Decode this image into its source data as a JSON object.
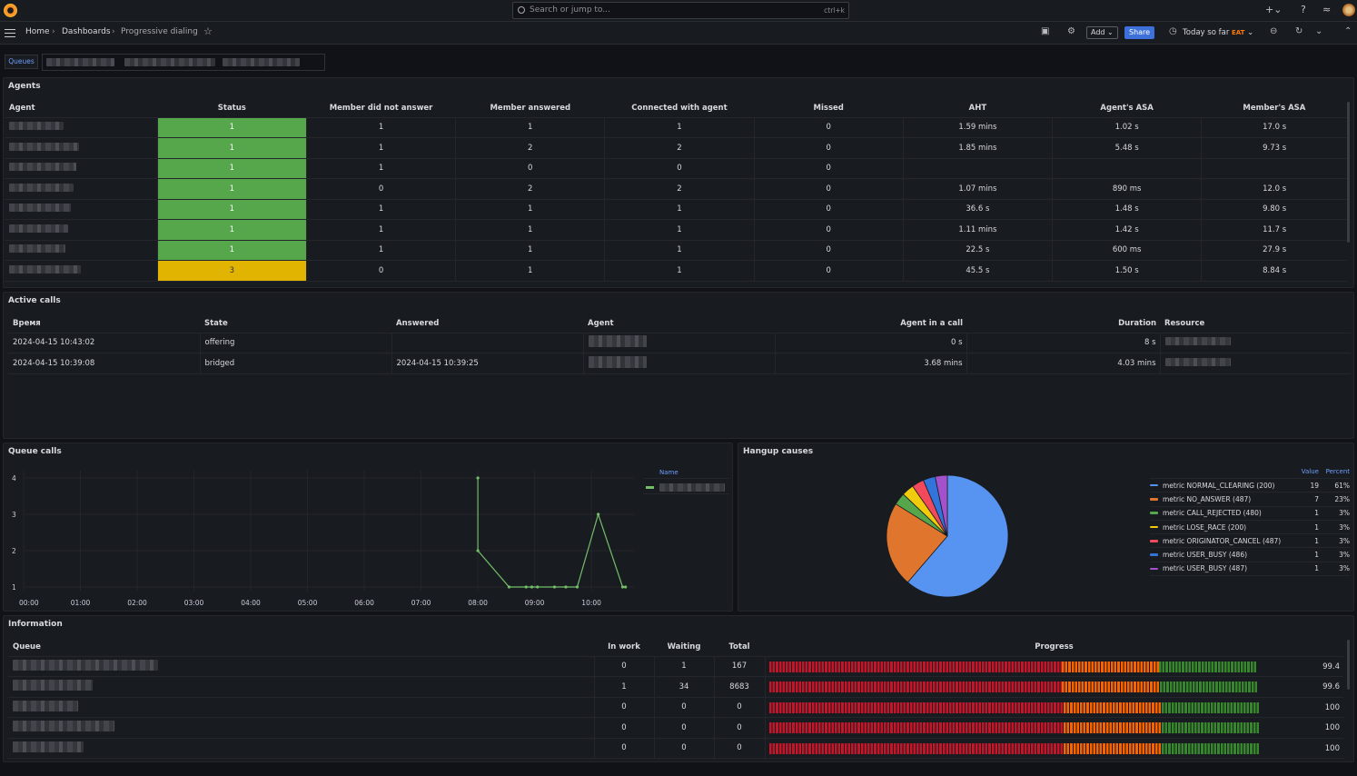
{
  "topbar": {
    "search_placeholder": "Search or jump to...",
    "search_shortcut": "ctrl+k"
  },
  "breadcrumb": [
    "Home",
    "Dashboards",
    "Progressive dialing"
  ],
  "toolbar": {
    "add_label": "Add",
    "share_label": "Share",
    "time_label": "Today so far",
    "timezone": "EAT"
  },
  "variables": {
    "queues_label": "Queues"
  },
  "agents": {
    "title": "Agents",
    "columns": [
      "Agent",
      "Status",
      "Member did not answer",
      "Member answered",
      "Connected with agent",
      "Missed",
      "AHT",
      "Agent's ASA",
      "Member's ASA"
    ],
    "rows": [
      {
        "status": "1",
        "status_color": "green",
        "no_answer": "1",
        "answered": "1",
        "connected": "1",
        "missed": "0",
        "aht": "1.59 mins",
        "agent_asa": "1.02 s",
        "member_asa": "17.0 s"
      },
      {
        "status": "1",
        "status_color": "green",
        "no_answer": "1",
        "answered": "2",
        "connected": "2",
        "missed": "0",
        "aht": "1.85 mins",
        "agent_asa": "5.48 s",
        "member_asa": "9.73 s"
      },
      {
        "status": "1",
        "status_color": "green",
        "no_answer": "1",
        "answered": "0",
        "connected": "0",
        "missed": "0",
        "aht": "",
        "agent_asa": "",
        "member_asa": ""
      },
      {
        "status": "1",
        "status_color": "green",
        "no_answer": "0",
        "answered": "2",
        "connected": "2",
        "missed": "0",
        "aht": "1.07 mins",
        "agent_asa": "890 ms",
        "member_asa": "12.0 s"
      },
      {
        "status": "1",
        "status_color": "green",
        "no_answer": "1",
        "answered": "1",
        "connected": "1",
        "missed": "0",
        "aht": "36.6 s",
        "agent_asa": "1.48 s",
        "member_asa": "9.80 s"
      },
      {
        "status": "1",
        "status_color": "green",
        "no_answer": "1",
        "answered": "1",
        "connected": "1",
        "missed": "0",
        "aht": "1.11 mins",
        "agent_asa": "1.42 s",
        "member_asa": "11.7 s"
      },
      {
        "status": "1",
        "status_color": "green",
        "no_answer": "1",
        "answered": "1",
        "connected": "1",
        "missed": "0",
        "aht": "22.5 s",
        "agent_asa": "600 ms",
        "member_asa": "27.9 s"
      },
      {
        "status": "3",
        "status_color": "yellow",
        "no_answer": "0",
        "answered": "1",
        "connected": "1",
        "missed": "0",
        "aht": "45.5 s",
        "agent_asa": "1.50 s",
        "member_asa": "8.84 s"
      }
    ]
  },
  "active_calls": {
    "title": "Active calls",
    "columns": [
      "Время",
      "State",
      "Answered",
      "Agent",
      "Agent in a call",
      "Duration",
      "Resource"
    ],
    "rows": [
      {
        "time": "2024-04-15 10:43:02",
        "state": "offering",
        "answered": "",
        "agent_in_call": "0 s",
        "duration": "8 s"
      },
      {
        "time": "2024-04-15 10:39:08",
        "state": "bridged",
        "answered": "2024-04-15 10:39:25",
        "agent_in_call": "3.68 mins",
        "duration": "4.03 mins"
      }
    ]
  },
  "queue_calls": {
    "title": "Queue calls",
    "legend_header": "Name"
  },
  "chart_data": [
    {
      "type": "line",
      "title": "Queue calls",
      "x_ticks": [
        "00:00",
        "01:00",
        "02:00",
        "03:00",
        "04:00",
        "05:00",
        "06:00",
        "07:00",
        "08:00",
        "09:00",
        "10:00"
      ],
      "y_ticks": [
        "1",
        "2",
        "3",
        "4"
      ],
      "ylim": [
        0.9,
        4.2
      ],
      "xlim_hours": [
        0,
        10.75
      ],
      "series": [
        {
          "color": "#73bf69",
          "x_hours": [
            8.0,
            8.0,
            8.55,
            8.85,
            8.95,
            9.05,
            9.35,
            9.55,
            9.75,
            10.12,
            10.55,
            10.6
          ],
          "values": [
            4,
            2,
            1,
            1,
            1,
            1,
            1,
            1,
            1,
            3,
            1,
            1
          ]
        }
      ]
    },
    {
      "type": "pie",
      "title": "Hangup causes",
      "legend_headers": [
        "Value",
        "Percent"
      ],
      "slices": [
        {
          "label": "metric NORMAL_CLEARING (200)",
          "value": 19,
          "percent": "61%",
          "color": "#5794f2"
        },
        {
          "label": "metric NO_ANSWER (487)",
          "value": 7,
          "percent": "23%",
          "color": "#e0752d"
        },
        {
          "label": "metric CALL_REJECTED (480)",
          "value": 1,
          "percent": "3%",
          "color": "#56a64b"
        },
        {
          "label": "metric LOSE_RACE (200)",
          "value": 1,
          "percent": "3%",
          "color": "#f2cc0c"
        },
        {
          "label": "metric ORIGINATOR_CANCEL (487)",
          "value": 1,
          "percent": "3%",
          "color": "#f2495c"
        },
        {
          "label": "metric USER_BUSY (486)",
          "value": 1,
          "percent": "3%",
          "color": "#3274d9"
        },
        {
          "label": "metric USER_BUSY (487)",
          "value": 1,
          "percent": "3%",
          "color": "#a352cc"
        }
      ]
    }
  ],
  "information": {
    "title": "Information",
    "columns": [
      "Queue",
      "In work",
      "Waiting",
      "Total",
      "Progress"
    ],
    "rows": [
      {
        "in_work": "0",
        "waiting": "1",
        "total": "167",
        "progress": "99.4"
      },
      {
        "in_work": "1",
        "waiting": "34",
        "total": "8683",
        "progress": "99.6"
      },
      {
        "in_work": "0",
        "waiting": "0",
        "total": "0",
        "progress": "100"
      },
      {
        "in_work": "0",
        "waiting": "0",
        "total": "0",
        "progress": "100"
      },
      {
        "in_work": "0",
        "waiting": "0",
        "total": "0",
        "progress": "100"
      }
    ]
  }
}
